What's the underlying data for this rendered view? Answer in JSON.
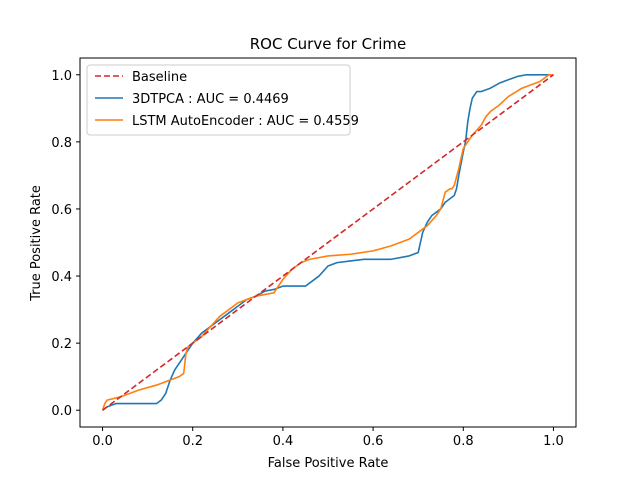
{
  "chart_data": {
    "type": "line",
    "title": "ROC Curve for Crime",
    "xlabel": "False Positive Rate",
    "ylabel": "True Positive Rate",
    "xlim": [
      -0.05,
      1.05
    ],
    "ylim": [
      -0.05,
      1.05
    ],
    "xticks": [
      0.0,
      0.2,
      0.4,
      0.6,
      0.8,
      1.0
    ],
    "yticks": [
      0.0,
      0.2,
      0.4,
      0.6,
      0.8,
      1.0
    ],
    "xtick_labels": [
      "0.0",
      "0.2",
      "0.4",
      "0.6",
      "0.8",
      "1.0"
    ],
    "ytick_labels": [
      "0.0",
      "0.2",
      "0.4",
      "0.6",
      "0.8",
      "1.0"
    ],
    "grid": false,
    "legend_position": "top-left",
    "series": [
      {
        "name": "Baseline",
        "color": "#d62728",
        "style": "dashed",
        "x": [
          0.0,
          1.0
        ],
        "y": [
          0.0,
          1.0
        ]
      },
      {
        "name": "3DTPCA : AUC = 0.4469",
        "color": "#1f77b4",
        "style": "solid",
        "x": [
          0.0,
          0.01,
          0.03,
          0.06,
          0.09,
          0.12,
          0.13,
          0.14,
          0.15,
          0.16,
          0.17,
          0.18,
          0.19,
          0.2,
          0.22,
          0.24,
          0.26,
          0.28,
          0.3,
          0.32,
          0.34,
          0.36,
          0.38,
          0.4,
          0.42,
          0.45,
          0.48,
          0.5,
          0.52,
          0.55,
          0.58,
          0.6,
          0.64,
          0.68,
          0.7,
          0.71,
          0.72,
          0.73,
          0.74,
          0.75,
          0.76,
          0.77,
          0.78,
          0.785,
          0.79,
          0.8,
          0.805,
          0.81,
          0.815,
          0.82,
          0.83,
          0.84,
          0.86,
          0.88,
          0.9,
          0.92,
          0.94,
          0.96,
          0.98,
          0.99,
          1.0
        ],
        "y": [
          0.0,
          0.01,
          0.02,
          0.02,
          0.02,
          0.02,
          0.03,
          0.05,
          0.09,
          0.12,
          0.14,
          0.16,
          0.18,
          0.2,
          0.23,
          0.25,
          0.27,
          0.29,
          0.31,
          0.33,
          0.34,
          0.355,
          0.36,
          0.37,
          0.37,
          0.37,
          0.4,
          0.43,
          0.44,
          0.445,
          0.45,
          0.45,
          0.45,
          0.46,
          0.47,
          0.53,
          0.56,
          0.58,
          0.59,
          0.6,
          0.62,
          0.63,
          0.64,
          0.66,
          0.7,
          0.77,
          0.8,
          0.86,
          0.9,
          0.93,
          0.95,
          0.95,
          0.96,
          0.975,
          0.985,
          0.995,
          1.0,
          1.0,
          1.0,
          1.0,
          1.0
        ]
      },
      {
        "name": "LSTM AutoEncoder : AUC = 0.4559",
        "color": "#ff7f0e",
        "style": "solid",
        "x": [
          0.0,
          0.005,
          0.01,
          0.04,
          0.08,
          0.12,
          0.15,
          0.17,
          0.18,
          0.185,
          0.19,
          0.2,
          0.22,
          0.24,
          0.26,
          0.28,
          0.3,
          0.34,
          0.38,
          0.4,
          0.42,
          0.44,
          0.46,
          0.48,
          0.5,
          0.55,
          0.6,
          0.64,
          0.68,
          0.7,
          0.72,
          0.74,
          0.75,
          0.76,
          0.77,
          0.775,
          0.78,
          0.79,
          0.8,
          0.81,
          0.82,
          0.83,
          0.84,
          0.85,
          0.86,
          0.88,
          0.9,
          0.93,
          0.95,
          0.97,
          0.98,
          0.99,
          1.0
        ],
        "y": [
          0.0,
          0.02,
          0.03,
          0.04,
          0.06,
          0.075,
          0.09,
          0.1,
          0.11,
          0.17,
          0.19,
          0.2,
          0.22,
          0.25,
          0.28,
          0.3,
          0.32,
          0.34,
          0.35,
          0.39,
          0.42,
          0.44,
          0.45,
          0.455,
          0.46,
          0.465,
          0.475,
          0.49,
          0.51,
          0.53,
          0.55,
          0.58,
          0.6,
          0.65,
          0.66,
          0.66,
          0.67,
          0.72,
          0.78,
          0.8,
          0.82,
          0.835,
          0.85,
          0.875,
          0.89,
          0.91,
          0.935,
          0.96,
          0.97,
          0.98,
          0.99,
          1.0,
          1.0
        ]
      }
    ]
  }
}
